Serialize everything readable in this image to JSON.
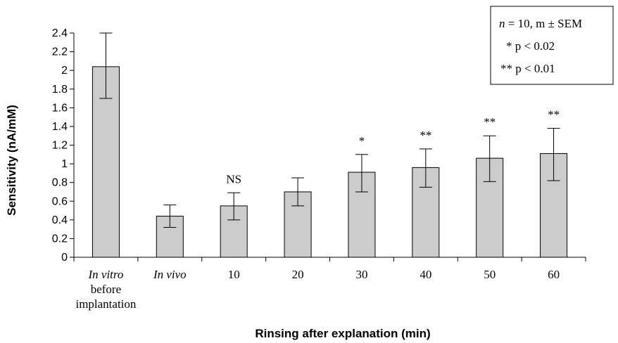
{
  "chart_data": {
    "type": "bar",
    "categories": [
      {
        "lines": [
          "In vitro",
          "before",
          "implantation"
        ],
        "italic": [
          true,
          false,
          false
        ]
      },
      {
        "lines": [
          "In vivo"
        ],
        "italic": [
          true
        ]
      },
      {
        "lines": [
          "10"
        ],
        "italic": [
          false
        ]
      },
      {
        "lines": [
          "20"
        ],
        "italic": [
          false
        ]
      },
      {
        "lines": [
          "30"
        ],
        "italic": [
          false
        ]
      },
      {
        "lines": [
          "40"
        ],
        "italic": [
          false
        ]
      },
      {
        "lines": [
          "50"
        ],
        "italic": [
          false
        ]
      },
      {
        "lines": [
          "60"
        ],
        "italic": [
          false
        ]
      }
    ],
    "values": [
      2.04,
      0.44,
      0.55,
      0.7,
      0.91,
      0.96,
      1.06,
      1.11
    ],
    "error_upper": [
      2.4,
      0.56,
      0.69,
      0.85,
      1.1,
      1.16,
      1.3,
      1.38
    ],
    "error_lower": [
      1.7,
      0.32,
      0.4,
      0.55,
      0.7,
      0.75,
      0.81,
      0.82
    ],
    "annotations": [
      "",
      "",
      "NS",
      "",
      "*",
      "**",
      "**",
      "**"
    ],
    "xlabel": "Rinsing after explanation (min)",
    "ylabel": "Sensitivity (nA/mM)",
    "ylim": [
      0,
      2.4
    ],
    "yticks": [
      "0",
      "0.2",
      "0.4",
      "0.6",
      "0.8",
      "1",
      "1.2",
      "1.4",
      "1.6",
      "1.8",
      "2",
      "2.2",
      "2.4"
    ],
    "grid": false,
    "bar_color": "#cccccc",
    "legend": {
      "placement": "top-right",
      "lines": [
        {
          "italic_prefix": "n",
          "text": " = 10, m ± SEM"
        },
        {
          "italic_prefix": "",
          "text": "* p < 0.02"
        },
        {
          "italic_prefix": "",
          "text": "** p < 0.01"
        }
      ]
    }
  }
}
